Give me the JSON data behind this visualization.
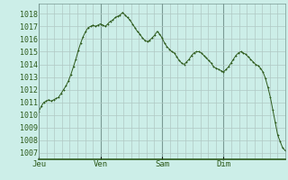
{
  "background_color": "#cceee8",
  "plot_bg_color": "#cceee8",
  "line_color": "#2d5a1b",
  "marker_color": "#2d5a1b",
  "grid_color": "#b0c8c4",
  "day_grid_color": "#7a9a94",
  "ylim": [
    1006.5,
    1018.8
  ],
  "yticks": [
    1007,
    1008,
    1009,
    1010,
    1011,
    1012,
    1013,
    1014,
    1015,
    1016,
    1017,
    1018
  ],
  "day_labels": [
    "Jeu",
    "Ven",
    "Sam",
    "Dim"
  ],
  "day_positions": [
    0,
    24,
    48,
    72
  ],
  "total_hours": 96,
  "pressure_data": [
    1010.3,
    1010.7,
    1011.0,
    1011.1,
    1011.2,
    1011.1,
    1011.2,
    1011.3,
    1011.4,
    1011.7,
    1012.0,
    1012.3,
    1012.7,
    1013.2,
    1013.8,
    1014.4,
    1015.1,
    1015.7,
    1016.2,
    1016.6,
    1016.9,
    1017.0,
    1017.1,
    1017.0,
    1017.1,
    1017.2,
    1017.1,
    1017.0,
    1017.2,
    1017.4,
    1017.5,
    1017.7,
    1017.8,
    1017.9,
    1018.1,
    1017.9,
    1017.7,
    1017.5,
    1017.2,
    1016.9,
    1016.6,
    1016.4,
    1016.1,
    1015.9,
    1015.8,
    1015.9,
    1016.1,
    1016.3,
    1016.6,
    1016.4,
    1016.1,
    1015.7,
    1015.4,
    1015.2,
    1015.0,
    1014.9,
    1014.6,
    1014.3,
    1014.1,
    1014.0,
    1014.2,
    1014.4,
    1014.7,
    1014.9,
    1015.0,
    1015.0,
    1014.9,
    1014.7,
    1014.5,
    1014.3,
    1014.1,
    1013.8,
    1013.7,
    1013.6,
    1013.5,
    1013.4,
    1013.6,
    1013.8,
    1014.1,
    1014.4,
    1014.7,
    1014.9,
    1015.0,
    1014.9,
    1014.8,
    1014.6,
    1014.4,
    1014.2,
    1014.0,
    1013.9,
    1013.7,
    1013.4,
    1012.9,
    1012.2,
    1011.4,
    1010.4,
    1009.4,
    1008.4,
    1007.9,
    1007.4,
    1007.2
  ]
}
